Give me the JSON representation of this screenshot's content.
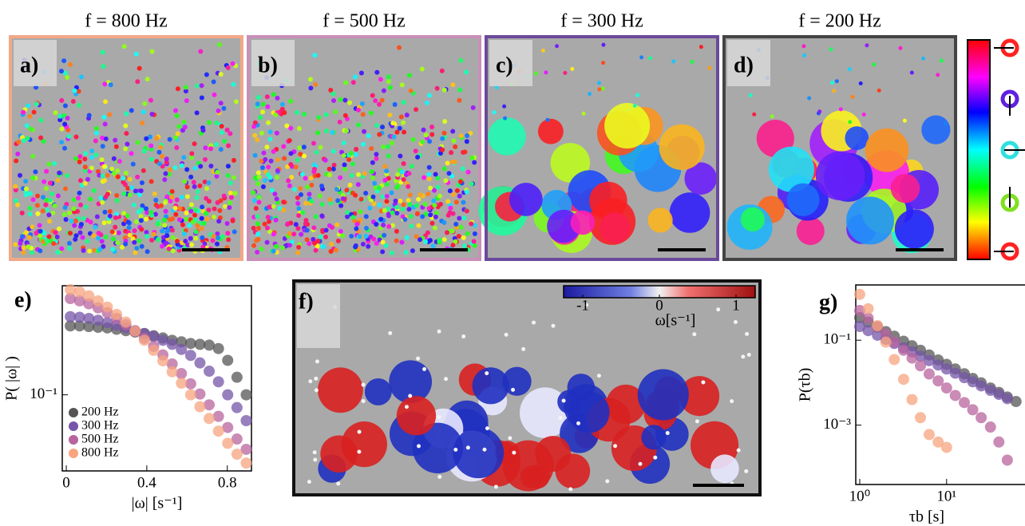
{
  "panels": [
    {
      "label": "a)",
      "title": "f = 800 Hz"
    },
    {
      "label": "b)",
      "title": "f = 500 Hz"
    },
    {
      "label": "c)",
      "title": "f = 300 Hz"
    },
    {
      "label": "d)",
      "title": "f = 200 Hz"
    }
  ],
  "panel_f": {
    "label": "f)",
    "colorbar": {
      "label": "ω[s⁻¹]",
      "lim": [
        -1.25,
        1.25
      ],
      "ticks": [
        -1,
        0,
        1
      ]
    }
  },
  "chart_data": [
    {
      "type": "scatter",
      "label": "e)",
      "x_label": "|ω| [s⁻¹]",
      "y_label": "P( |ω| )",
      "log_y": true,
      "x": [
        0.02,
        0.066,
        0.112,
        0.158,
        0.204,
        0.25,
        0.296,
        0.342,
        0.388,
        0.434,
        0.48,
        0.526,
        0.572,
        0.618,
        0.664,
        0.71,
        0.756,
        0.802,
        0.848,
        0.894
      ],
      "xlim": [
        -0.02,
        0.92
      ],
      "xticks": [
        0,
        0.4,
        0.8
      ],
      "ylim": [
        0.038,
        0.4
      ],
      "yticks": [
        {
          "value": 0.1,
          "label": "10⁻¹"
        }
      ],
      "legend": "lower left",
      "series": [
        {
          "name": "200 Hz",
          "color": "#555555",
          "values": [
            0.24,
            0.24,
            0.238,
            0.236,
            0.234,
            0.23,
            0.226,
            0.222,
            0.218,
            0.212,
            0.206,
            0.2,
            0.196,
            0.192,
            0.19,
            0.188,
            0.18,
            0.155,
            0.125,
            0.1
          ]
        },
        {
          "name": "300 Hz",
          "color": "#7556a8",
          "values": [
            0.27,
            0.268,
            0.264,
            0.258,
            0.25,
            0.242,
            0.234,
            0.226,
            0.218,
            0.21,
            0.2,
            0.19,
            0.178,
            0.165,
            0.15,
            0.135,
            0.118,
            0.1,
            0.085,
            0.072
          ]
        },
        {
          "name": "500 Hz",
          "color": "#b8649e",
          "values": [
            0.34,
            0.33,
            0.318,
            0.302,
            0.284,
            0.264,
            0.244,
            0.224,
            0.205,
            0.185,
            0.166,
            0.148,
            0.131,
            0.115,
            0.101,
            0.088,
            0.076,
            0.066,
            0.057,
            0.05
          ]
        },
        {
          "name": "800 Hz",
          "color": "#f7a47f",
          "values": [
            0.38,
            0.37,
            0.352,
            0.33,
            0.305,
            0.278,
            0.252,
            0.225,
            0.2,
            0.176,
            0.154,
            0.134,
            0.116,
            0.1,
            0.086,
            0.074,
            0.063,
            0.054,
            0.047,
            0.042
          ]
        }
      ]
    },
    {
      "type": "scatter",
      "label": "g)",
      "x_label": "τb [s]",
      "y_label": "P(τb)",
      "log_x": true,
      "log_y": true,
      "x": [
        1,
        1.25,
        1.6,
        2,
        2.5,
        3.2,
        4,
        5,
        6.3,
        8,
        10,
        12.6,
        16,
        20,
        25,
        32,
        40,
        50,
        63
      ],
      "xlim": [
        0.9,
        75
      ],
      "xticks": [
        {
          "value": 1,
          "label": "10⁰"
        },
        {
          "value": 10,
          "label": "10¹"
        }
      ],
      "ylim": [
        4e-05,
        2
      ],
      "yticks": [
        {
          "value": 0.1,
          "label": "10⁻¹"
        },
        {
          "value": 0.001,
          "label": "10⁻³"
        }
      ],
      "series": [
        {
          "name": "200 Hz",
          "color": "#555555",
          "values": [
            0.34,
            0.266,
            0.203,
            0.159,
            0.124,
            0.0945,
            0.0741,
            0.0578,
            0.0449,
            0.0343,
            0.027,
            0.021,
            0.0162,
            0.0126,
            0.0099,
            0.0075,
            0.0059,
            0.0046,
            0.0036
          ]
        },
        {
          "name": "300 Hz",
          "color": "#7556a8",
          "values": [
            0.21,
            0.168,
            0.131,
            0.105,
            0.084,
            0.066,
            0.053,
            0.042,
            0.033,
            0.026,
            0.021,
            0.0167,
            0.0131,
            0.0105,
            0.0084,
            0.0066,
            0.0053,
            0.0042,
            null
          ]
        },
        {
          "name": "500 Hz",
          "color": "#b8649e",
          "values": [
            0.5,
            0.33,
            0.21,
            0.14,
            0.09,
            0.058,
            0.038,
            0.025,
            0.016,
            0.011,
            0.0075,
            0.005,
            0.0034,
            0.0023,
            0.0015,
            0.0009,
            0.0004,
            0.00015,
            null
          ]
        },
        {
          "name": "800 Hz",
          "color": "#f7a47f",
          "values": [
            1.2,
            0.55,
            0.22,
            0.09,
            0.035,
            0.012,
            0.004,
            0.0015,
            0.0006,
            0.0004,
            0.0003,
            null,
            null,
            null,
            null,
            null,
            null,
            null,
            null
          ]
        }
      ]
    }
  ]
}
